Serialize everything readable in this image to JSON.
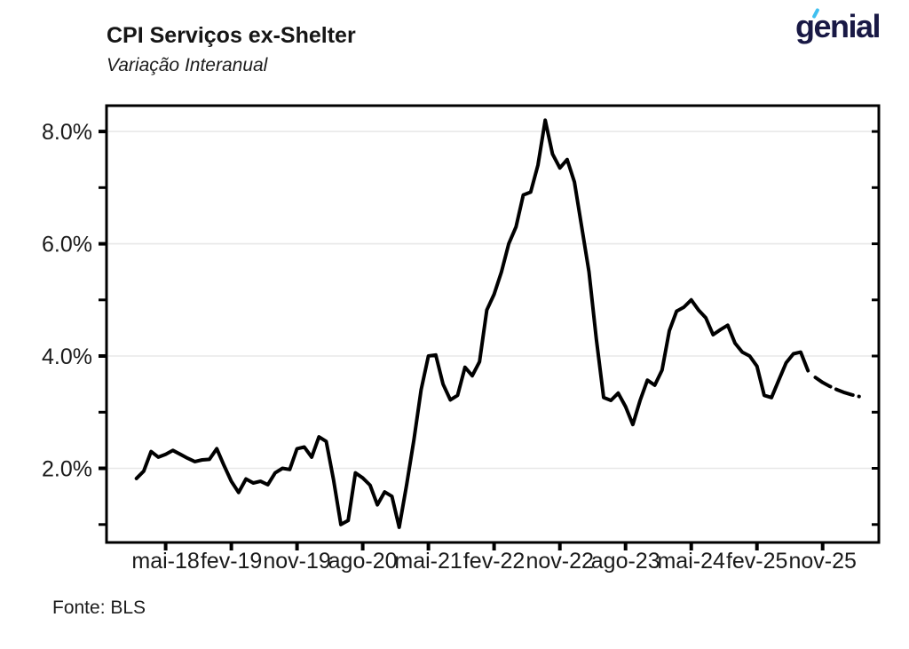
{
  "logo": {
    "text": "genial",
    "text_color": "#191945",
    "accent_color": "#3fc0f0"
  },
  "chart_data": {
    "type": "line",
    "title": "CPI Serviços ex-Shelter",
    "subtitle": "Variação Interanual",
    "source": "Fonte: BLS",
    "line_color": "#000000",
    "grid_color": "#e8e8e8",
    "x_unit": "month index (0 = jan-18, monthly steps)",
    "xlim": [
      -4.1,
      101.7
    ],
    "ylim": [
      0.68,
      8.46
    ],
    "y_axis": {
      "gridlines": [
        2,
        4,
        6,
        8
      ],
      "tick_values": [
        1,
        2,
        3,
        4,
        5,
        6,
        7,
        8
      ],
      "labeled_ticks": [
        {
          "value": 2,
          "label": "2.0%"
        },
        {
          "value": 4,
          "label": "4.0%"
        },
        {
          "value": 6,
          "label": "6.0%"
        },
        {
          "value": 8,
          "label": "8.0%"
        }
      ]
    },
    "x_axis": {
      "ticks": [
        {
          "month": "mai-18",
          "index": 4
        },
        {
          "month": "fev-19",
          "index": 13
        },
        {
          "month": "nov-19",
          "index": 22
        },
        {
          "month": "ago-20",
          "index": 31
        },
        {
          "month": "mai-21",
          "index": 40
        },
        {
          "month": "fev-22",
          "index": 49
        },
        {
          "month": "nov-22",
          "index": 58
        },
        {
          "month": "ago-23",
          "index": 67
        },
        {
          "month": "mai-24",
          "index": 76
        },
        {
          "month": "fev-25",
          "index": 85
        },
        {
          "month": "nov-25",
          "index": 94
        }
      ]
    },
    "series": [
      {
        "name": "CPI serviços ex-shelter, variação interanual (linha sólida)",
        "style": "solid",
        "frequency": "monthly",
        "start_month": "jan-18",
        "start_index": 0,
        "values": [
          1.82,
          1.95,
          2.3,
          2.2,
          2.25,
          2.32,
          2.25,
          2.18,
          2.12,
          2.15,
          2.16,
          2.35,
          2.05,
          1.77,
          1.57,
          1.81,
          1.74,
          1.77,
          1.71,
          1.92,
          2.0,
          1.98,
          2.35,
          2.38,
          2.2,
          2.56,
          2.48,
          1.8,
          1.0,
          1.07,
          1.92,
          1.83,
          1.7,
          1.35,
          1.58,
          1.5,
          0.95,
          1.7,
          2.5,
          3.4,
          4.0,
          4.02,
          3.5,
          3.22,
          3.3,
          3.8,
          3.65,
          3.9,
          4.82,
          5.1,
          5.5,
          6.0,
          6.3,
          6.87,
          6.92,
          7.4,
          8.2,
          7.6,
          7.35,
          7.5,
          7.1,
          6.3,
          5.5,
          4.3,
          3.26,
          3.21,
          3.34,
          3.1,
          2.78,
          3.21,
          3.57,
          3.48,
          3.75,
          4.45,
          4.8,
          4.87,
          5.0,
          4.82,
          4.68,
          4.38,
          4.47,
          4.55,
          4.23,
          4.07,
          4.0,
          3.82,
          3.3,
          3.26,
          3.57,
          3.88,
          4.04,
          4.07,
          3.74
        ]
      },
      {
        "name": "trecho tracejado (projeção)",
        "style": "dashed",
        "frequency": "monthly",
        "start_month": "out-25",
        "start_index": 93,
        "values": [
          3.62,
          3.53,
          3.46,
          3.4,
          3.35,
          3.31,
          3.28
        ]
      }
    ]
  }
}
